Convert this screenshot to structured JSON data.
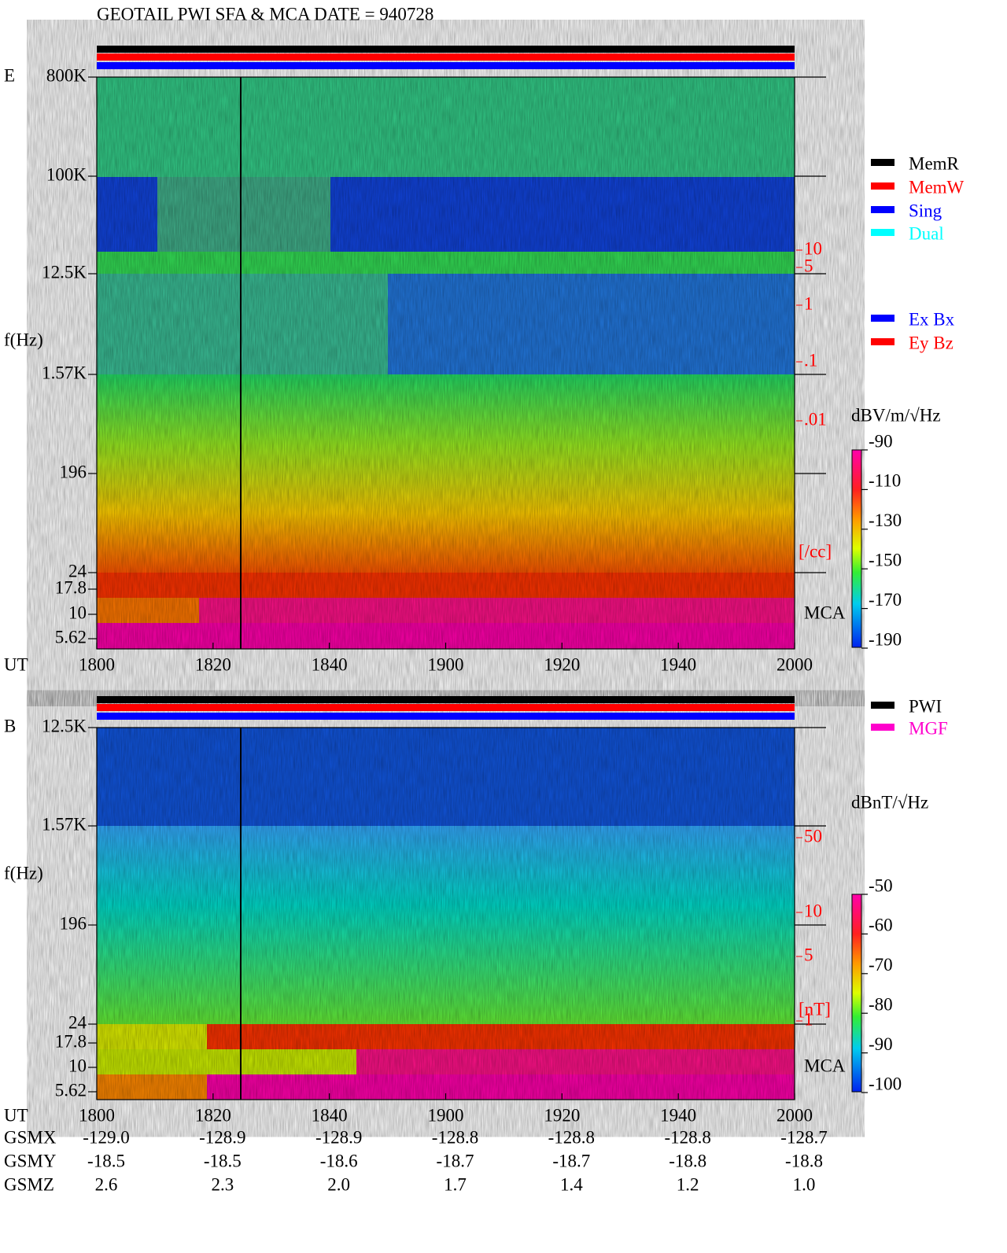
{
  "title": "GEOTAIL  PWI SFA & MCA   DATE = 940728",
  "xticks": [
    "1800",
    "1820",
    "1840",
    "1900",
    "1920",
    "1940",
    "2000"
  ],
  "panels": [
    {
      "label": "E",
      "ylabel": "f(Hz)",
      "xlabel": "UT",
      "yticks": [
        "800K",
        "100K",
        "12.5K",
        "1.57K",
        "196",
        "24",
        "17.8",
        "10",
        "5.62"
      ],
      "right_ticks": [
        "10",
        "5",
        "1",
        ".1",
        ".01"
      ],
      "right_unit": "[/cc]",
      "mca": "MCA",
      "legend": [
        {
          "name": "MemR",
          "color": "#000000"
        },
        {
          "name": "MemW",
          "color": "#ff0000"
        },
        {
          "name": "Sing",
          "color": "#0000ff"
        },
        {
          "name": "Dual",
          "color": "#00ffff"
        }
      ],
      "legend2": [
        {
          "name": "Ex Bx",
          "color": "#0000ff"
        },
        {
          "name": "Ey Bz",
          "color": "#ff0000"
        }
      ],
      "colorbar_unit": "dBV/m/√Hz",
      "colorbar_ticks": [
        "-90",
        "-110",
        "-130",
        "-150",
        "-170",
        "-190"
      ]
    },
    {
      "label": "B",
      "ylabel": "f(Hz)",
      "xlabel": "UT",
      "yticks": [
        "12.5K",
        "1.57K",
        "196",
        "24",
        "17.8",
        "10",
        "5.62"
      ],
      "right_ticks": [
        "50",
        "10",
        "5",
        "1"
      ],
      "right_unit": "[nT]",
      "mca": "MCA",
      "legend": [
        {
          "name": "PWI",
          "color": "#000000"
        },
        {
          "name": "MGF",
          "color": "#ff00cc"
        }
      ],
      "colorbar_unit": "dBnT/√Hz",
      "colorbar_ticks": [
        "-50",
        "-60",
        "-70",
        "-80",
        "-90",
        "-100"
      ]
    }
  ],
  "orbit": [
    {
      "label": "GSMX",
      "values": [
        "-129.0",
        "-128.9",
        "-128.9",
        "-128.8",
        "-128.8",
        "-128.8",
        "-128.7"
      ]
    },
    {
      "label": "GSMY",
      "values": [
        "-18.5",
        "-18.5",
        "-18.6",
        "-18.7",
        "-18.7",
        "-18.8",
        "-18.8"
      ]
    },
    {
      "label": "GSMZ",
      "values": [
        "2.6",
        "2.3",
        "2.0",
        "1.7",
        "1.4",
        "1.2",
        "1.0"
      ]
    }
  ]
}
